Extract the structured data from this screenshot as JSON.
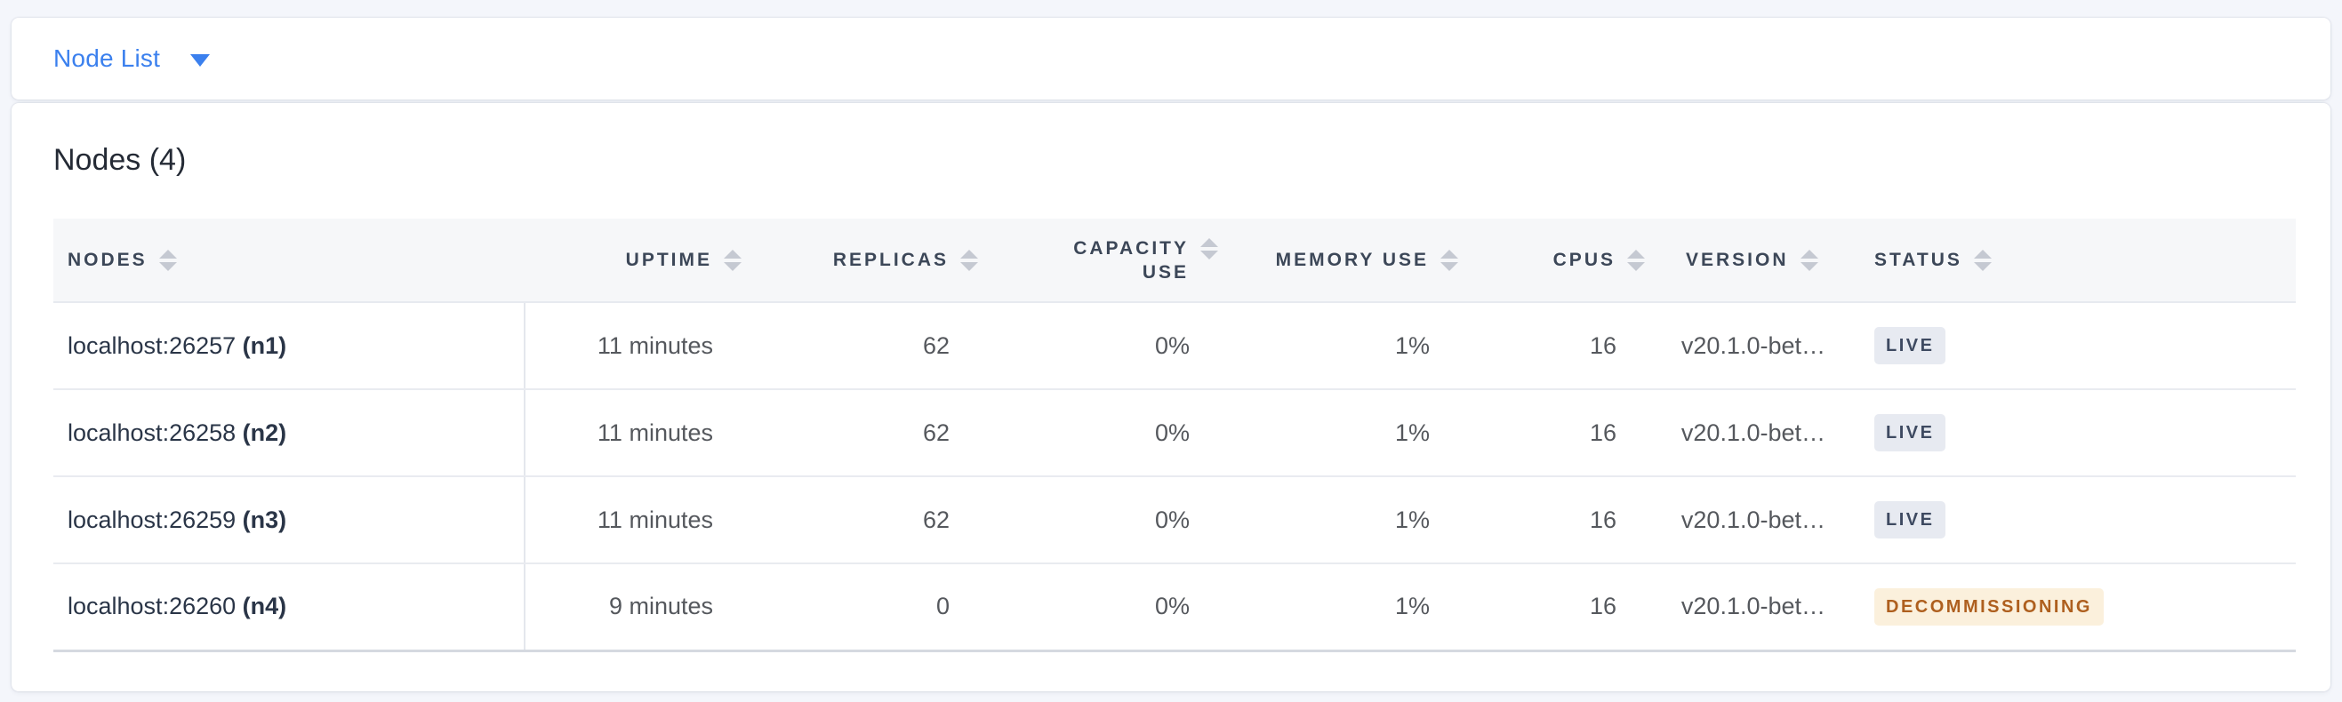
{
  "header": {
    "view_selector": "Node List"
  },
  "main": {
    "title": "Nodes (4)"
  },
  "colors": {
    "accent_blue": "#3b80ee",
    "live_badge_bg": "#e7eaf1",
    "live_badge_text": "#3e4a61",
    "decommissioning_badge_bg": "#fbf0dc",
    "decommissioning_badge_text": "#ae5f1e",
    "header_row_bg": "#f6f7f9",
    "page_bg": "#f4f6fb"
  },
  "icons": {
    "view_dropdown": "caret-down-icon",
    "column_sort": "sort-arrows-icon"
  },
  "table": {
    "columns": [
      {
        "id": "nodes",
        "label": "NODES",
        "align": "left"
      },
      {
        "id": "uptime",
        "label": "UPTIME",
        "align": "right"
      },
      {
        "id": "replicas",
        "label": "REPLICAS",
        "align": "right"
      },
      {
        "id": "capacity",
        "label": "CAPACITY USE",
        "align": "right"
      },
      {
        "id": "memory",
        "label": "MEMORY USE",
        "align": "right"
      },
      {
        "id": "cpus",
        "label": "CPUS",
        "align": "right"
      },
      {
        "id": "version",
        "label": "VERSION",
        "align": "left"
      },
      {
        "id": "status",
        "label": "STATUS",
        "align": "left"
      }
    ],
    "rows": [
      {
        "address": "localhost:26257",
        "node_id": "(n1)",
        "uptime": "11 minutes",
        "replicas": "62",
        "capacity_use": "0%",
        "memory_use": "1%",
        "cpus": "16",
        "version": "v20.1.0-bet…",
        "status": "LIVE",
        "status_type": "live"
      },
      {
        "address": "localhost:26258",
        "node_id": "(n2)",
        "uptime": "11 minutes",
        "replicas": "62",
        "capacity_use": "0%",
        "memory_use": "1%",
        "cpus": "16",
        "version": "v20.1.0-bet…",
        "status": "LIVE",
        "status_type": "live"
      },
      {
        "address": "localhost:26259",
        "node_id": "(n3)",
        "uptime": "11 minutes",
        "replicas": "62",
        "capacity_use": "0%",
        "memory_use": "1%",
        "cpus": "16",
        "version": "v20.1.0-bet…",
        "status": "LIVE",
        "status_type": "live"
      },
      {
        "address": "localhost:26260",
        "node_id": "(n4)",
        "uptime": "9 minutes",
        "replicas": "0",
        "capacity_use": "0%",
        "memory_use": "1%",
        "cpus": "16",
        "version": "v20.1.0-bet…",
        "status": "DECOMMISSIONING",
        "status_type": "decommissioning"
      }
    ]
  }
}
